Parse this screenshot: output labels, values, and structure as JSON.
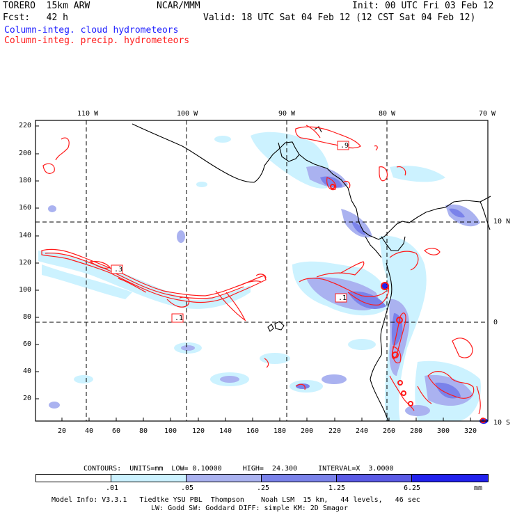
{
  "header": {
    "model": "TORERO  15km ARW",
    "org": "NCAR/MMM",
    "init": "Init: 00 UTC Fri 03 Feb 12",
    "fcst": "Fcst:   42 h",
    "valid": "Valid: 18 UTC Sat 04 Feb 12 (12 CST Sat 04 Feb 12)",
    "field1": "Column-integ. cloud hydrometeors",
    "field2": "Column-integ. precip. hydrometeors"
  },
  "map": {
    "lon_labels": [
      "110 W",
      "100 W",
      "90 W",
      "80 W",
      "70 W"
    ],
    "lat_labels": [
      "10 N",
      "0",
      "10 S"
    ],
    "y_ticks": [
      "220",
      "200",
      "180",
      "160",
      "140",
      "120",
      "100",
      "80",
      "60",
      "40",
      "20"
    ],
    "x_ticks": [
      "20",
      "40",
      "60",
      "80",
      "100",
      "120",
      "140",
      "160",
      "180",
      "200",
      "220",
      "240",
      "260",
      "280",
      "300",
      "320"
    ],
    "box_labels": [
      ".9",
      ".3",
      ".1",
      ".1"
    ],
    "colors": {
      "shade1": "#ccf2ff",
      "shade2": "#aab2f0",
      "shade3": "#7a82ea",
      "shade4": "#5a5ae6",
      "shade5": "#2222ee",
      "contour": "#ff1a1a"
    }
  },
  "contour_info": {
    "label": "CONTOURS:  UNITS=mm  LOW= 0.10000     HIGH=  24.300     INTERVAL=X  3.0000"
  },
  "colorbar": {
    "labels": [
      ".01",
      ".05",
      ".25",
      "1.25",
      "6.25"
    ],
    "unit": "mm",
    "colors": [
      "#ffffff",
      "#ccf2ff",
      "#aab2f0",
      "#7a82ea",
      "#5a5ae6",
      "#2222ee"
    ]
  },
  "footer": {
    "line1": "Model Info: V3.3.1   Tiedtke YSU PBL  Thompson    Noah LSM  15 km,   44 levels,   46 sec",
    "line2": "LW: Godd SW: Goddard DIFF: simple KM: 2D Smagor"
  }
}
